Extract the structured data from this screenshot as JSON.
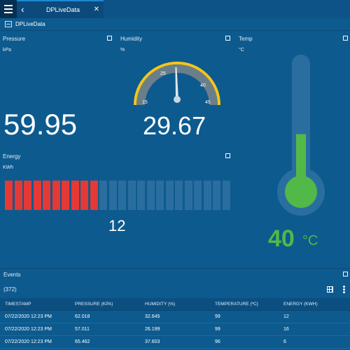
{
  "topbar": {
    "tab_label": "DPLiveData",
    "back_icon": "chevron-left-icon",
    "close_icon": "close-icon",
    "menu_icon": "hamburger-icon"
  },
  "subbar": {
    "label": "DPLiveData",
    "icon": "dashboard-icon"
  },
  "pressure": {
    "title": "Pressure",
    "unit": "kPa",
    "value": "59.95"
  },
  "humidity": {
    "title": "Humidity",
    "unit": "%",
    "value": "29.67",
    "gauge": {
      "min": "15",
      "max": "45",
      "ticks": [
        "15",
        "25",
        "40",
        "45"
      ],
      "needle_value": 29.67,
      "gauge_min": 15,
      "gauge_max": 45,
      "arc_color": "#f5c518"
    }
  },
  "temp": {
    "title": "Temp",
    "unit": "°C",
    "value": "40",
    "display_unit": "°C",
    "fill_fraction": 0.45,
    "color": "#52b848"
  },
  "energy": {
    "title": "Energy",
    "unit": "KWh",
    "value": "12",
    "total_bars": 24,
    "active_bars": 10,
    "active_color": "#e53935",
    "inactive_color": "#2a6e9f"
  },
  "events": {
    "title": "Events",
    "count": "(372)",
    "columns": [
      "TIMESTAMP",
      "PRESSURE (KPA)",
      "HUMIDITY (%)",
      "TEMPERATURE (ºC)",
      "ENERGY (KWH)"
    ],
    "rows": [
      [
        "07/22/2020 12:23 PM",
        "62.018",
        "32.645",
        "99",
        "12"
      ],
      [
        "07/22/2020 12:23 PM",
        "57.011",
        "26.199",
        "99",
        "16"
      ],
      [
        "07/22/2020 12:23 PM",
        "65.462",
        "37.603",
        "96",
        "6"
      ]
    ]
  },
  "colors": {
    "background": "#0d5a8f",
    "accent_green": "#52b848",
    "accent_red": "#e53935",
    "gauge_yellow": "#f5c518"
  }
}
